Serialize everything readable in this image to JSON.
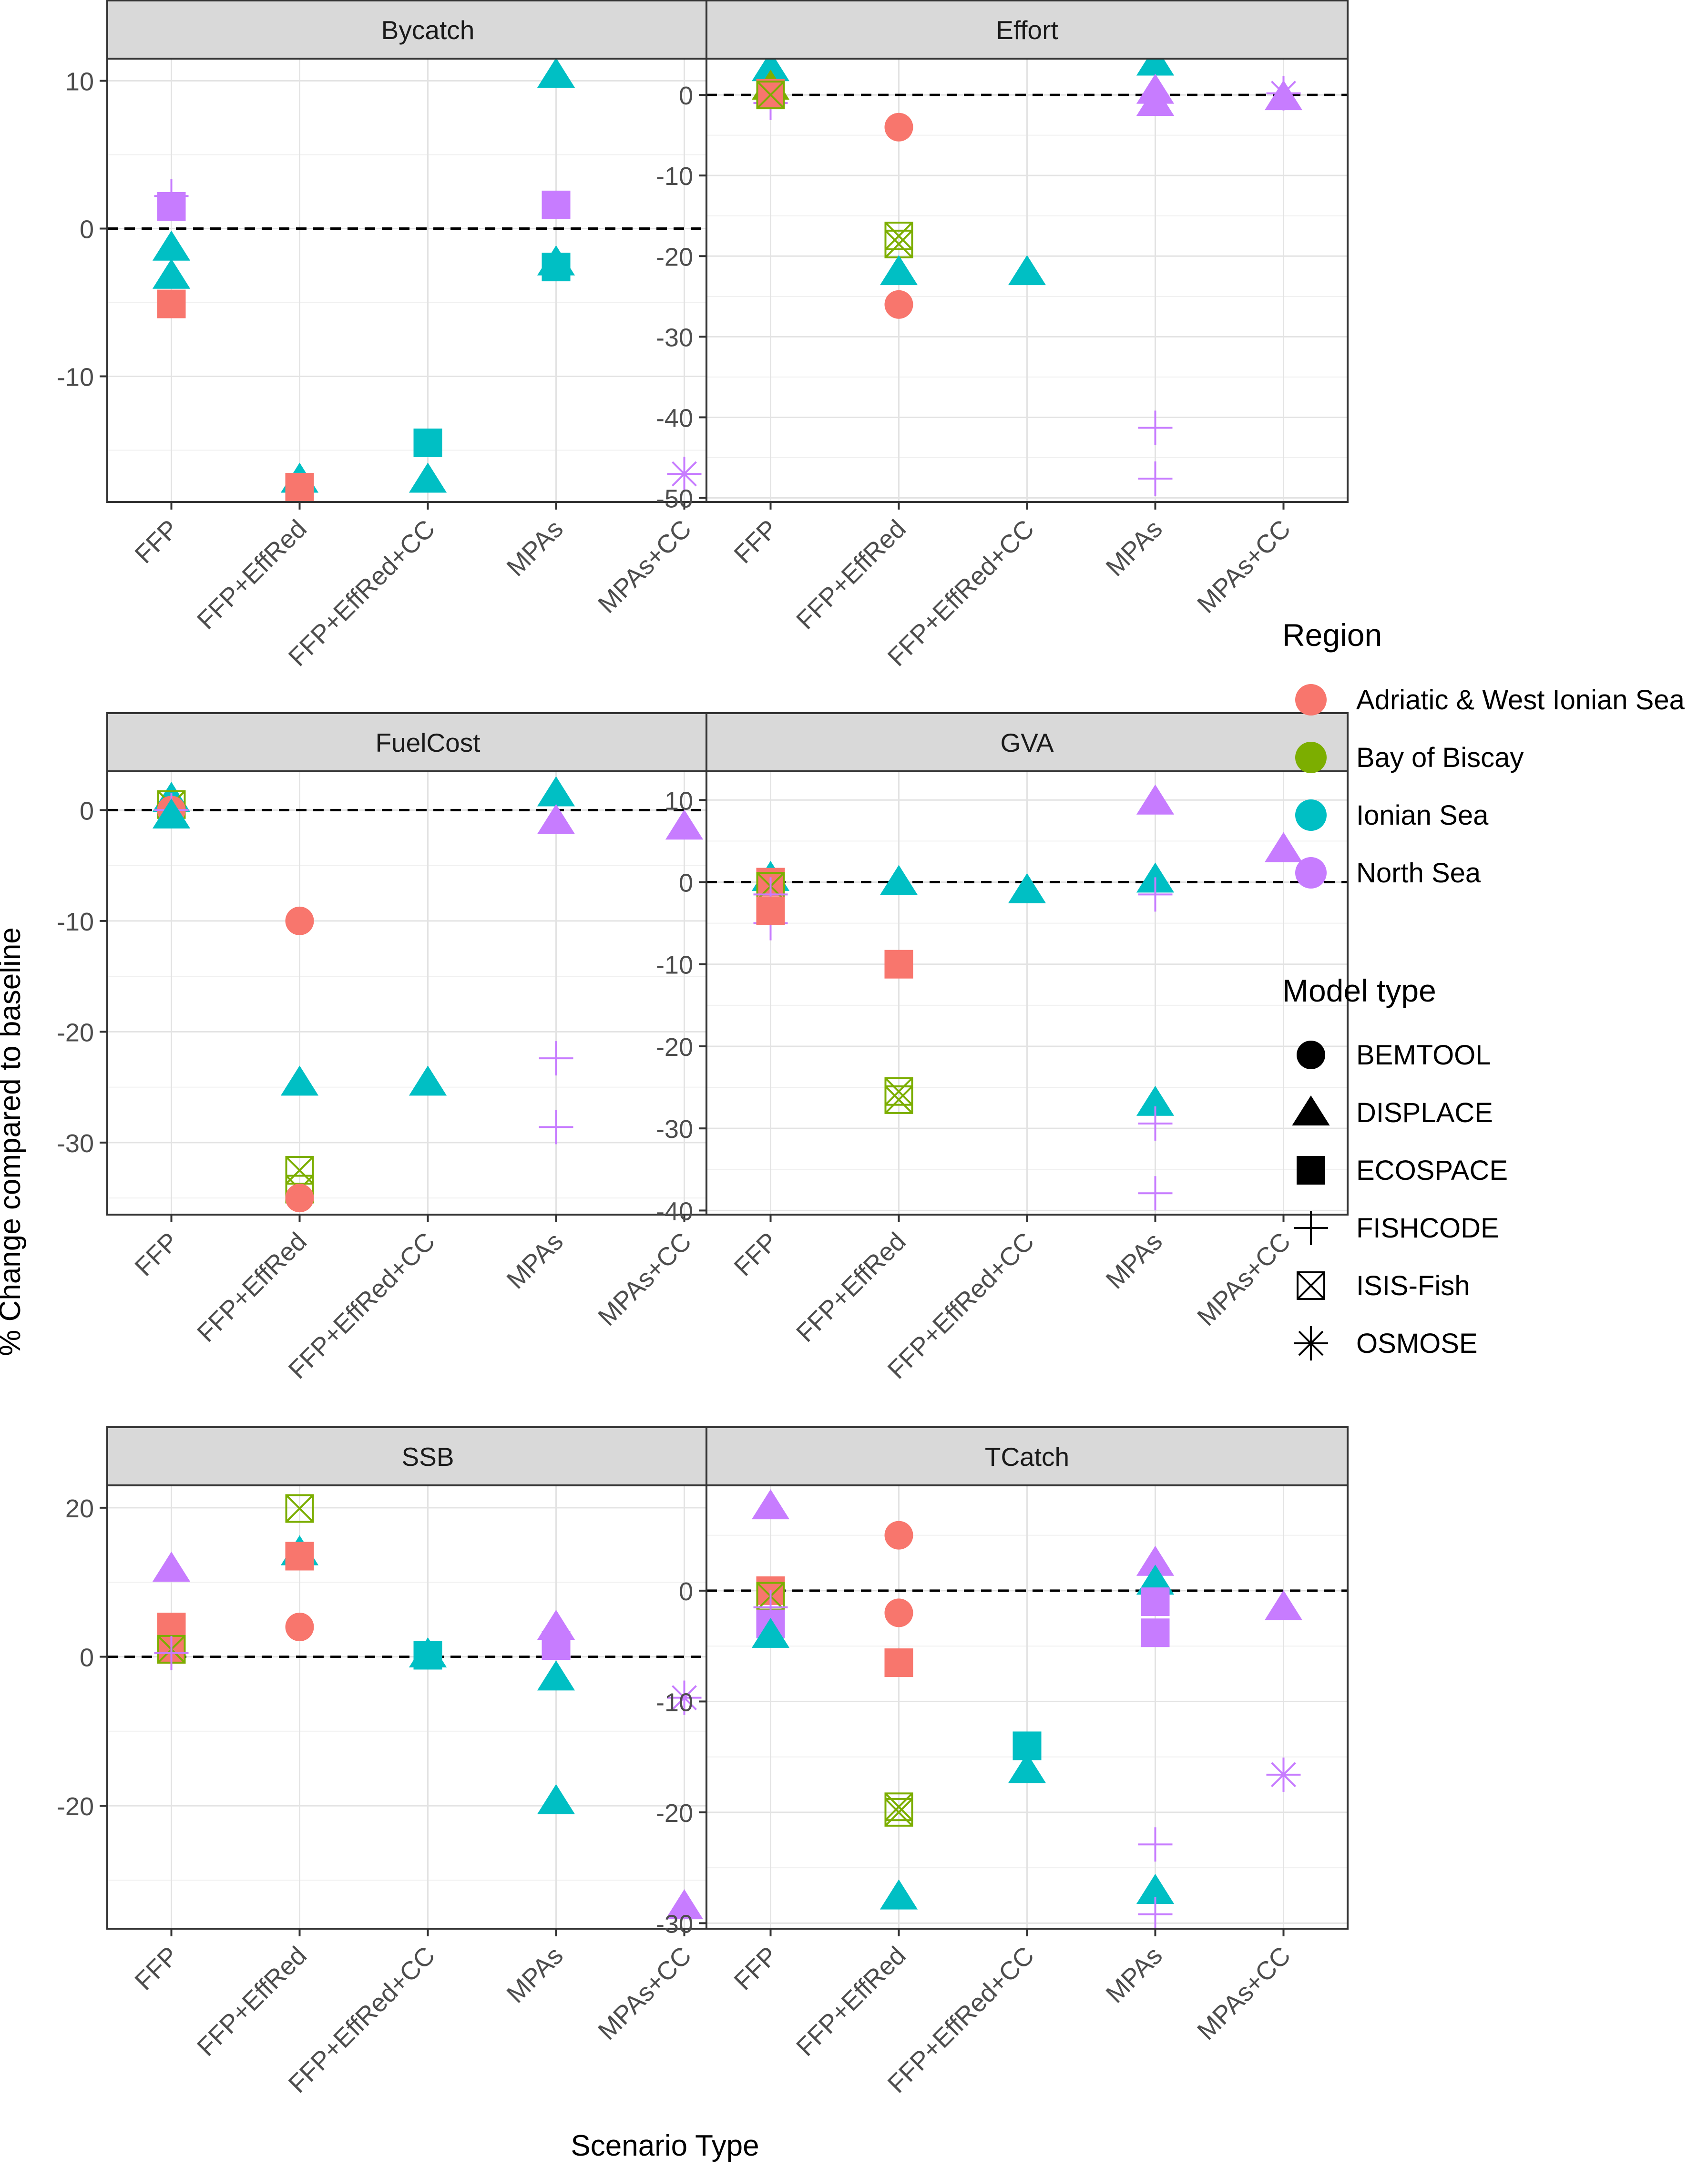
{
  "chart_data": {
    "type": "scatter",
    "layout": "faceted 3x2 grid, free y scales",
    "xlabel": "Scenario Type",
    "ylabel": "% Change compared to baseline",
    "categories": [
      "FFP",
      "FFP+EffRed",
      "FFP+EffRed+CC",
      "MPAs",
      "MPAs+CC"
    ],
    "reference_line": 0,
    "colors": {
      "Adriatic & West Ionian Sea": "#F8766D",
      "Bay of Biscay": "#7CAE00",
      "Ionian Sea": "#00BFC4",
      "North Sea": "#C77CFF"
    },
    "legend": {
      "region_title": "Region",
      "regions": [
        "Adriatic & West Ionian Sea",
        "Bay of Biscay",
        "Ionian Sea",
        "North Sea"
      ],
      "model_title": "Model type",
      "models": [
        "BEMTOOL",
        "DISPLACE",
        "ECOSPACE",
        "FISHCODE",
        "ISIS-Fish",
        "OSMOSE"
      ],
      "model_icons": [
        "circle-icon",
        "triangle-icon",
        "square-icon",
        "plus-icon",
        "boxed-x-icon",
        "asterisk-icon"
      ],
      "placement": "right"
    },
    "panels": [
      {
        "title": "Bycatch",
        "ylim": [
          -18.5,
          11.5
        ],
        "yticks": [
          -10,
          0,
          10
        ],
        "yminor": [
          -15,
          -5,
          5
        ],
        "points": [
          {
            "scenario": "FFP",
            "region": "North Sea",
            "model": "FISHCODE",
            "value": 2.2
          },
          {
            "scenario": "FFP",
            "region": "North Sea",
            "model": "ECOSPACE",
            "value": 1.5
          },
          {
            "scenario": "FFP",
            "region": "Ionian Sea",
            "model": "DISPLACE",
            "value": -1.3
          },
          {
            "scenario": "FFP",
            "region": "Ionian Sea",
            "model": "DISPLACE",
            "value": -3.2
          },
          {
            "scenario": "FFP",
            "region": "Adriatic & West Ionian Sea",
            "model": "ECOSPACE",
            "value": -5.1
          },
          {
            "scenario": "FFP+EffRed",
            "region": "Ionian Sea",
            "model": "DISPLACE",
            "value": -17.0
          },
          {
            "scenario": "FFP+EffRed",
            "region": "Adriatic & West Ionian Sea",
            "model": "ECOSPACE",
            "value": -17.5
          },
          {
            "scenario": "FFP+EffRed+CC",
            "region": "Ionian Sea",
            "model": "ECOSPACE",
            "value": -14.5
          },
          {
            "scenario": "FFP+EffRed+CC",
            "region": "Ionian Sea",
            "model": "DISPLACE",
            "value": -17.0
          },
          {
            "scenario": "MPAs",
            "region": "Ionian Sea",
            "model": "DISPLACE",
            "value": 10.4
          },
          {
            "scenario": "MPAs",
            "region": "North Sea",
            "model": "ECOSPACE",
            "value": 1.6
          },
          {
            "scenario": "MPAs",
            "region": "Ionian Sea",
            "model": "DISPLACE",
            "value": -2.3
          },
          {
            "scenario": "MPAs",
            "region": "Ionian Sea",
            "model": "ECOSPACE",
            "value": -2.6
          },
          {
            "scenario": "MPAs+CC",
            "region": "North Sea",
            "model": "OSMOSE",
            "value": -16.6
          }
        ]
      },
      {
        "title": "Effort",
        "ylim": [
          -50.5,
          4.5
        ],
        "yticks": [
          -50,
          -40,
          -30,
          -20,
          -10,
          0
        ],
        "yminor": [
          -45,
          -35,
          -25,
          -15,
          -5
        ],
        "points": [
          {
            "scenario": "FFP",
            "region": "Ionian Sea",
            "model": "DISPLACE",
            "value": 3.3
          },
          {
            "scenario": "FFP",
            "region": "Bay of Biscay",
            "model": "DISPLACE",
            "value": 1.0
          },
          {
            "scenario": "FFP",
            "region": "North Sea",
            "model": "FISHCODE",
            "value": -1.0
          },
          {
            "scenario": "FFP",
            "region": "Adriatic & West Ionian Sea",
            "model": "ECOSPACE",
            "value": 0.2
          },
          {
            "scenario": "FFP",
            "region": "Bay of Biscay",
            "model": "ISIS-Fish",
            "value": 0.0
          },
          {
            "scenario": "FFP+EffRed",
            "region": "Adriatic & West Ionian Sea",
            "model": "BEMTOOL",
            "value": -4.0
          },
          {
            "scenario": "FFP+EffRed",
            "region": "Bay of Biscay",
            "model": "ISIS-Fish",
            "value": -17.5
          },
          {
            "scenario": "FFP+EffRed",
            "region": "Bay of Biscay",
            "model": "ISIS-Fish",
            "value": -18.5
          },
          {
            "scenario": "FFP+EffRed",
            "region": "Ionian Sea",
            "model": "DISPLACE",
            "value": -22.0
          },
          {
            "scenario": "FFP+EffRed",
            "region": "Adriatic & West Ionian Sea",
            "model": "BEMTOOL",
            "value": -26.0
          },
          {
            "scenario": "FFP+EffRed+CC",
            "region": "Ionian Sea",
            "model": "DISPLACE",
            "value": -22.0
          },
          {
            "scenario": "MPAs",
            "region": "Ionian Sea",
            "model": "DISPLACE",
            "value": 4.0
          },
          {
            "scenario": "MPAs",
            "region": "North Sea",
            "model": "DISPLACE",
            "value": 0.5
          },
          {
            "scenario": "MPAs",
            "region": "North Sea",
            "model": "DISPLACE",
            "value": -1.0
          },
          {
            "scenario": "MPAs",
            "region": "North Sea",
            "model": "FISHCODE",
            "value": -41.3
          },
          {
            "scenario": "MPAs",
            "region": "North Sea",
            "model": "FISHCODE",
            "value": -47.6
          },
          {
            "scenario": "MPAs+CC",
            "region": "North Sea",
            "model": "OSMOSE",
            "value": 0.2
          },
          {
            "scenario": "MPAs+CC",
            "region": "North Sea",
            "model": "DISPLACE",
            "value": -0.3
          }
        ]
      },
      {
        "title": "FuelCost",
        "ylim": [
          -36.5,
          3.5
        ],
        "yticks": [
          -30,
          -20,
          -10,
          0
        ],
        "yminor": [
          -35,
          -25,
          -15,
          -5
        ],
        "points": [
          {
            "scenario": "FFP",
            "region": "Ionian Sea",
            "model": "DISPLACE",
            "value": 1.0
          },
          {
            "scenario": "FFP",
            "region": "Bay of Biscay",
            "model": "ISIS-Fish",
            "value": 0.5
          },
          {
            "scenario": "FFP",
            "region": "Adriatic & West Ionian Sea",
            "model": "BEMTOOL",
            "value": 0.0
          },
          {
            "scenario": "FFP",
            "region": "North Sea",
            "model": "FISHCODE",
            "value": 0.0
          },
          {
            "scenario": "FFP",
            "region": "Ionian Sea",
            "model": "DISPLACE",
            "value": -0.5
          },
          {
            "scenario": "FFP+EffRed",
            "region": "Adriatic & West Ionian Sea",
            "model": "BEMTOOL",
            "value": -10.0
          },
          {
            "scenario": "FFP+EffRed",
            "region": "Ionian Sea",
            "model": "DISPLACE",
            "value": -24.6
          },
          {
            "scenario": "FFP+EffRed",
            "region": "Bay of Biscay",
            "model": "ISIS-Fish",
            "value": -32.5
          },
          {
            "scenario": "FFP+EffRed",
            "region": "Bay of Biscay",
            "model": "ISIS-Fish",
            "value": -34.2
          },
          {
            "scenario": "FFP+EffRed",
            "region": "Adriatic & West Ionian Sea",
            "model": "BEMTOOL",
            "value": -35.0
          },
          {
            "scenario": "FFP+EffRed+CC",
            "region": "Ionian Sea",
            "model": "DISPLACE",
            "value": -24.6
          },
          {
            "scenario": "MPAs",
            "region": "Ionian Sea",
            "model": "DISPLACE",
            "value": 1.5
          },
          {
            "scenario": "MPAs",
            "region": "North Sea",
            "model": "DISPLACE",
            "value": -1.0
          },
          {
            "scenario": "MPAs",
            "region": "North Sea",
            "model": "FISHCODE",
            "value": -22.4
          },
          {
            "scenario": "MPAs",
            "region": "North Sea",
            "model": "FISHCODE",
            "value": -28.6
          },
          {
            "scenario": "MPAs+CC",
            "region": "North Sea",
            "model": "DISPLACE",
            "value": -1.5
          }
        ]
      },
      {
        "title": "GVA",
        "ylim": [
          -40.5,
          13.5
        ],
        "yticks": [
          -40,
          -30,
          -20,
          -10,
          0,
          10
        ],
        "yminor": [
          -35,
          -25,
          -15,
          -5,
          5
        ],
        "points": [
          {
            "scenario": "FFP",
            "region": "Ionian Sea",
            "model": "DISPLACE",
            "value": 0.5
          },
          {
            "scenario": "FFP",
            "region": "Adriatic & West Ionian Sea",
            "model": "ECOSPACE",
            "value": 0.0
          },
          {
            "scenario": "FFP",
            "region": "Bay of Biscay",
            "model": "ISIS-Fish",
            "value": -0.5
          },
          {
            "scenario": "FFP",
            "region": "North Sea",
            "model": "FISHCODE",
            "value": -1.5
          },
          {
            "scenario": "FFP",
            "region": "North Sea",
            "model": "FISHCODE",
            "value": -5.0
          },
          {
            "scenario": "FFP",
            "region": "Adriatic & West Ionian Sea",
            "model": "ECOSPACE",
            "value": -3.5
          },
          {
            "scenario": "FFP+EffRed",
            "region": "Ionian Sea",
            "model": "DISPLACE",
            "value": 0.0
          },
          {
            "scenario": "FFP+EffRed",
            "region": "Adriatic & West Ionian Sea",
            "model": "ECOSPACE",
            "value": -10.0
          },
          {
            "scenario": "FFP+EffRed",
            "region": "Bay of Biscay",
            "model": "ISIS-Fish",
            "value": -25.5
          },
          {
            "scenario": "FFP+EffRed",
            "region": "Bay of Biscay",
            "model": "ISIS-Fish",
            "value": -26.5
          },
          {
            "scenario": "FFP+EffRed+CC",
            "region": "Ionian Sea",
            "model": "DISPLACE",
            "value": -1.0
          },
          {
            "scenario": "MPAs",
            "region": "North Sea",
            "model": "DISPLACE",
            "value": 9.8
          },
          {
            "scenario": "MPAs",
            "region": "Ionian Sea",
            "model": "DISPLACE",
            "value": 0.3
          },
          {
            "scenario": "MPAs",
            "region": "North Sea",
            "model": "FISHCODE",
            "value": -1.5
          },
          {
            "scenario": "MPAs",
            "region": "Ionian Sea",
            "model": "DISPLACE",
            "value": -26.9
          },
          {
            "scenario": "MPAs",
            "region": "North Sea",
            "model": "FISHCODE",
            "value": -29.4
          },
          {
            "scenario": "MPAs",
            "region": "North Sea",
            "model": "FISHCODE",
            "value": -37.9
          },
          {
            "scenario": "MPAs+CC",
            "region": "North Sea",
            "model": "DISPLACE",
            "value": 4.0
          }
        ]
      },
      {
        "title": "SSB",
        "ylim": [
          -36.5,
          23
        ],
        "yticks": [
          -20,
          0,
          20
        ],
        "yminor": [
          -30,
          -10,
          10
        ],
        "points": [
          {
            "scenario": "FFP",
            "region": "North Sea",
            "model": "DISPLACE",
            "value": 11.8
          },
          {
            "scenario": "FFP",
            "region": "Adriatic & West Ionian Sea",
            "model": "ECOSPACE",
            "value": 4.0
          },
          {
            "scenario": "FFP",
            "region": "Adriatic & West Ionian Sea",
            "model": "ECOSPACE",
            "value": 1.0
          },
          {
            "scenario": "FFP",
            "region": "Bay of Biscay",
            "model": "ISIS-Fish",
            "value": 1.0
          },
          {
            "scenario": "FFP",
            "region": "North Sea",
            "model": "FISHCODE",
            "value": 0.5
          },
          {
            "scenario": "FFP+EffRed",
            "region": "Bay of Biscay",
            "model": "ISIS-Fish",
            "value": 19.9
          },
          {
            "scenario": "FFP+EffRed",
            "region": "Ionian Sea",
            "model": "DISPLACE",
            "value": 14.0
          },
          {
            "scenario": "FFP+EffRed",
            "region": "Adriatic & West Ionian Sea",
            "model": "ECOSPACE",
            "value": 13.5
          },
          {
            "scenario": "FFP+EffRed",
            "region": "Adriatic & West Ionian Sea",
            "model": "BEMTOOL",
            "value": 4.0
          },
          {
            "scenario": "FFP+EffRed+CC",
            "region": "Ionian Sea",
            "model": "ECOSPACE",
            "value": 0.2
          },
          {
            "scenario": "FFP+EffRed+CC",
            "region": "Ionian Sea",
            "model": "DISPLACE",
            "value": 0.3
          },
          {
            "scenario": "MPAs",
            "region": "North Sea",
            "model": "DISPLACE",
            "value": 4.0
          },
          {
            "scenario": "MPAs",
            "region": "North Sea",
            "model": "ECOSPACE",
            "value": 1.5
          },
          {
            "scenario": "MPAs",
            "region": "Ionian Sea",
            "model": "DISPLACE",
            "value": -2.8
          },
          {
            "scenario": "MPAs",
            "region": "Ionian Sea",
            "model": "DISPLACE",
            "value": -19.4
          },
          {
            "scenario": "MPAs+CC",
            "region": "North Sea",
            "model": "OSMOSE",
            "value": -5.5
          },
          {
            "scenario": "MPAs+CC",
            "region": "North Sea",
            "model": "DISPLACE",
            "value": -33.5
          }
        ]
      },
      {
        "title": "TCatch",
        "ylim": [
          -30.5,
          9.5
        ],
        "yticks": [
          -30,
          -20,
          -10,
          0
        ],
        "yminor": [
          -25,
          -15,
          -5,
          5
        ],
        "points": [
          {
            "scenario": "FFP",
            "region": "North Sea",
            "model": "DISPLACE",
            "value": 7.6
          },
          {
            "scenario": "FFP",
            "region": "Adriatic & West Ionian Sea",
            "model": "ECOSPACE",
            "value": 0.0
          },
          {
            "scenario": "FFP",
            "region": "Bay of Biscay",
            "model": "ISIS-Fish",
            "value": -0.5
          },
          {
            "scenario": "FFP",
            "region": "North Sea",
            "model": "FISHCODE",
            "value": -1.5
          },
          {
            "scenario": "FFP",
            "region": "North Sea",
            "model": "ECOSPACE",
            "value": -3.0
          },
          {
            "scenario": "FFP",
            "region": "Ionian Sea",
            "model": "DISPLACE",
            "value": -4.0
          },
          {
            "scenario": "FFP+EffRed",
            "region": "Adriatic & West Ionian Sea",
            "model": "BEMTOOL",
            "value": 5.0
          },
          {
            "scenario": "FFP+EffRed",
            "region": "Adriatic & West Ionian Sea",
            "model": "BEMTOOL",
            "value": -2.0
          },
          {
            "scenario": "FFP+EffRed",
            "region": "Adriatic & West Ionian Sea",
            "model": "ECOSPACE",
            "value": -6.5
          },
          {
            "scenario": "FFP+EffRed",
            "region": "Bay of Biscay",
            "model": "ISIS-Fish",
            "value": -19.5
          },
          {
            "scenario": "FFP+EffRed",
            "region": "Bay of Biscay",
            "model": "ISIS-Fish",
            "value": -20.0
          },
          {
            "scenario": "FFP+EffRed",
            "region": "Ionian Sea",
            "model": "DISPLACE",
            "value": -27.6
          },
          {
            "scenario": "FFP+EffRed+CC",
            "region": "Ionian Sea",
            "model": "ECOSPACE",
            "value": -14.0
          },
          {
            "scenario": "FFP+EffRed+CC",
            "region": "Ionian Sea",
            "model": "DISPLACE",
            "value": -16.2
          },
          {
            "scenario": "MPAs",
            "region": "North Sea",
            "model": "DISPLACE",
            "value": 2.5
          },
          {
            "scenario": "MPAs",
            "region": "Ionian Sea",
            "model": "DISPLACE",
            "value": 0.8
          },
          {
            "scenario": "MPAs",
            "region": "North Sea",
            "model": "ECOSPACE",
            "value": -1.0
          },
          {
            "scenario": "MPAs",
            "region": "North Sea",
            "model": "ECOSPACE",
            "value": -3.8
          },
          {
            "scenario": "MPAs",
            "region": "North Sea",
            "model": "FISHCODE",
            "value": -22.9
          },
          {
            "scenario": "MPAs",
            "region": "Ionian Sea",
            "model": "DISPLACE",
            "value": -27.1
          },
          {
            "scenario": "MPAs",
            "region": "North Sea",
            "model": "FISHCODE",
            "value": -29.2
          },
          {
            "scenario": "MPAs+CC",
            "region": "North Sea",
            "model": "DISPLACE",
            "value": -1.5
          },
          {
            "scenario": "MPAs+CC",
            "region": "North Sea",
            "model": "OSMOSE",
            "value": -16.6
          }
        ]
      }
    ]
  }
}
